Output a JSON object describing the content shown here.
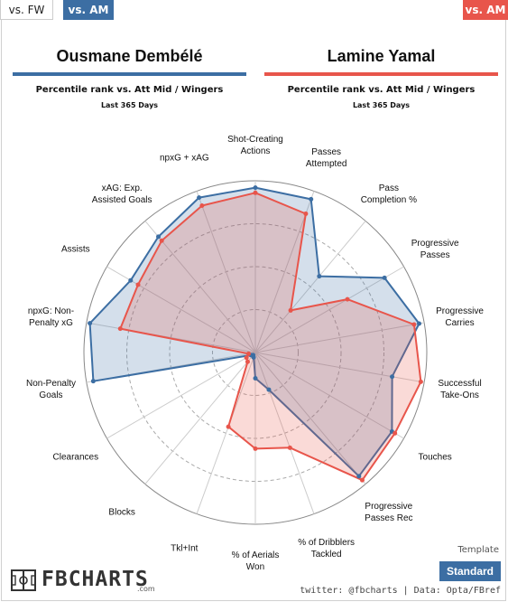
{
  "tabs": {
    "fw": "vs. FW",
    "am": "vs. AM",
    "am_right": "vs. AM"
  },
  "players": {
    "left": {
      "name": "Ousmane Dembélé",
      "subtitle": "Percentile rank vs. Att Mid / Wingers",
      "period": "Last 365 Days"
    },
    "right": {
      "name": "Lamine Yamal",
      "subtitle": "Percentile rank vs. Att Mid / Wingers",
      "period": "Last 365 Days"
    }
  },
  "template": {
    "label": "Template",
    "button": "Standard"
  },
  "branding": {
    "logo": "FBCHARTS",
    "logo_suffix": ".com",
    "credits": "twitter: @fbcharts | Data: Opta/FBref"
  },
  "colors": {
    "left": "#3c6ea3",
    "right": "#e8554b"
  },
  "chart_data": {
    "type": "radar",
    "axes": [
      "Shot-Creating\nActions",
      "Passes\nAttempted",
      "Pass\nCompletion %",
      "Progressive\nPasses",
      "Progressive\nCarries",
      "Successful\nTake-Ons",
      "Touches",
      "Progressive\nPasses Rec",
      "% of Dribblers\nTackled",
      "% of Aerials\nWon",
      "Tkl+Int",
      "Blocks",
      "Clearances",
      "Non-Penalty\nGoals",
      "npxG: Non-\nPenalty xG",
      "Assists",
      "xAG: Exp.\nAssisted Goals",
      "npxG + xAG"
    ],
    "rlim": [
      0,
      100
    ],
    "grid": true,
    "series": [
      {
        "name": "Ousmane Dembélé",
        "values": [
          96,
          95,
          58,
          87,
          97,
          81,
          92,
          94,
          23,
          15,
          3,
          2,
          3,
          96,
          98,
          84,
          88,
          96
        ]
      },
      {
        "name": "Lamine Yamal",
        "values": [
          93,
          86,
          32,
          62,
          94,
          98,
          94,
          97,
          59,
          56,
          46,
          7,
          6,
          4,
          80,
          79,
          85,
          91
        ]
      }
    ]
  }
}
